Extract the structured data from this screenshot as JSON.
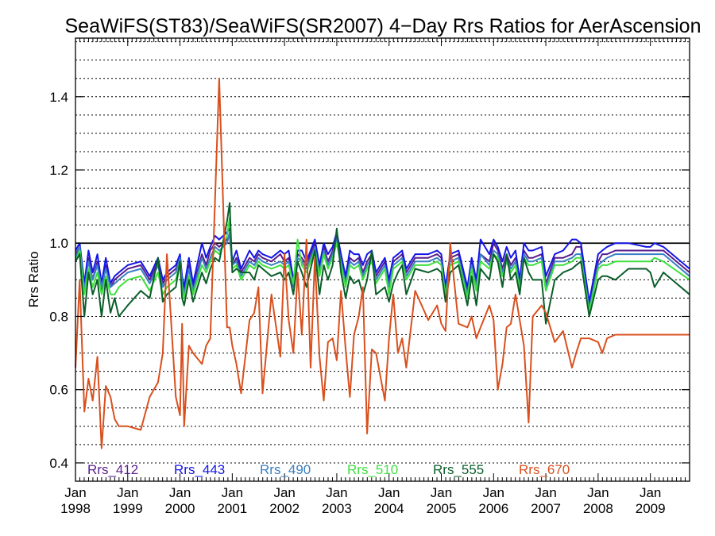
{
  "chart_data": {
    "type": "line",
    "title": "SeaWiFS(ST83)/SeaWiFS(SR2007) 4−Day Rrs Ratios for AerAscension",
    "ylabel": "Rrs Ratio",
    "xlabel": "",
    "xlim": [
      1998.0,
      2009.75
    ],
    "ylim": [
      0.35,
      1.56
    ],
    "y_ticks": [
      0.4,
      0.6,
      0.8,
      1.0,
      1.2,
      1.4
    ],
    "x_ticks": [
      {
        "value": 1998,
        "month": "Jan",
        "year": "1998"
      },
      {
        "value": 1999,
        "month": "Jan",
        "year": "1999"
      },
      {
        "value": 2000,
        "month": "Jan",
        "year": "2000"
      },
      {
        "value": 2001,
        "month": "Jan",
        "year": "2001"
      },
      {
        "value": 2002,
        "month": "Jan",
        "year": "2002"
      },
      {
        "value": 2003,
        "month": "Jan",
        "year": "2003"
      },
      {
        "value": 2004,
        "month": "Jan",
        "year": "2004"
      },
      {
        "value": 2005,
        "month": "Jan",
        "year": "2005"
      },
      {
        "value": 2006,
        "month": "Jan",
        "year": "2006"
      },
      {
        "value": 2007,
        "month": "Jan",
        "year": "2007"
      },
      {
        "value": 2008,
        "month": "Jan",
        "year": "2008"
      },
      {
        "value": 2009,
        "month": "Jan",
        "year": "2009"
      }
    ],
    "grid": true,
    "reference_line": 1.0,
    "legend_position": "bottom",
    "x": [
      1998.0,
      1998.08,
      1998.17,
      1998.25,
      1998.33,
      1998.42,
      1998.5,
      1998.58,
      1998.67,
      1998.75,
      1998.83,
      1999.0,
      1999.25,
      1999.42,
      1999.58,
      1999.67,
      1999.75,
      1999.92,
      2000.0,
      2000.04,
      2000.08,
      2000.17,
      2000.25,
      2000.42,
      2000.5,
      2000.58,
      2000.67,
      2000.75,
      2000.9,
      2000.95,
      2001.0,
      2001.08,
      2001.17,
      2001.33,
      2001.42,
      2001.5,
      2001.58,
      2001.75,
      2001.92,
      2002.0,
      2002.08,
      2002.17,
      2002.25,
      2002.33,
      2002.42,
      2002.5,
      2002.58,
      2002.67,
      2002.75,
      2002.83,
      2002.92,
      2003.0,
      2003.08,
      2003.17,
      2003.25,
      2003.33,
      2003.42,
      2003.5,
      2003.58,
      2003.67,
      2003.75,
      2003.92,
      2004.0,
      2004.08,
      2004.17,
      2004.25,
      2004.33,
      2004.5,
      2004.75,
      2004.92,
      2005.0,
      2005.08,
      2005.17,
      2005.33,
      2005.5,
      2005.58,
      2005.67,
      2005.75,
      2005.92,
      2006.0,
      2006.08,
      2006.17,
      2006.25,
      2006.33,
      2006.42,
      2006.5,
      2006.58,
      2006.67,
      2006.75,
      2006.92,
      2007.0,
      2007.17,
      2007.33,
      2007.5,
      2007.58,
      2007.67,
      2007.83,
      2008.0,
      2008.08,
      2008.17,
      2008.33,
      2008.58,
      2008.92,
      2009.0,
      2009.08,
      2009.25,
      2009.75
    ],
    "series": [
      {
        "name": "Rrs_412",
        "color": "#5a1e8c",
        "values": [
          0.97,
          0.99,
          0.88,
          0.96,
          0.9,
          0.95,
          0.87,
          0.94,
          0.88,
          0.9,
          0.91,
          0.93,
          0.94,
          0.9,
          0.95,
          0.89,
          0.91,
          0.93,
          0.96,
          0.9,
          0.87,
          0.94,
          0.88,
          0.97,
          0.94,
          0.98,
          1.0,
          0.99,
          1.01,
          1.02,
          0.94,
          0.96,
          0.92,
          0.96,
          0.95,
          0.97,
          0.96,
          0.95,
          0.97,
          0.95,
          0.96,
          0.88,
          0.97,
          0.96,
          0.94,
          0.97,
          1.0,
          0.93,
          0.99,
          0.95,
          0.98,
          1.02,
          0.96,
          0.9,
          0.96,
          0.95,
          0.96,
          0.92,
          0.95,
          0.97,
          0.91,
          0.95,
          0.89,
          0.95,
          0.96,
          0.97,
          0.92,
          0.96,
          0.96,
          0.97,
          0.96,
          0.87,
          0.96,
          0.97,
          0.87,
          0.95,
          0.89,
          0.97,
          0.95,
          1.0,
          0.98,
          0.93,
          0.97,
          0.94,
          0.96,
          0.89,
          0.98,
          0.96,
          0.96,
          0.97,
          0.89,
          0.96,
          0.96,
          0.97,
          0.99,
          0.99,
          0.83,
          0.95,
          0.97,
          0.97,
          0.98,
          0.98,
          0.98,
          0.98,
          0.98,
          0.98,
          0.92
        ]
      },
      {
        "name": "Rrs_443",
        "color": "#1515e6",
        "values": [
          0.98,
          1.0,
          0.89,
          0.98,
          0.92,
          0.97,
          0.89,
          0.96,
          0.89,
          0.91,
          0.92,
          0.94,
          0.95,
          0.91,
          0.96,
          0.9,
          0.92,
          0.94,
          0.97,
          0.91,
          0.88,
          0.96,
          0.89,
          1.0,
          0.96,
          0.99,
          1.02,
          1.01,
          1.03,
          1.04,
          0.95,
          0.98,
          0.93,
          0.98,
          0.96,
          0.98,
          0.97,
          0.96,
          0.98,
          0.97,
          0.98,
          0.9,
          0.98,
          0.98,
          0.95,
          0.98,
          1.01,
          0.94,
          1.0,
          0.97,
          0.99,
          1.03,
          0.97,
          0.91,
          0.98,
          0.97,
          0.97,
          0.94,
          0.97,
          0.98,
          0.92,
          0.96,
          0.9,
          0.96,
          0.97,
          0.98,
          0.93,
          0.97,
          0.97,
          0.98,
          0.97,
          0.88,
          0.97,
          0.98,
          0.88,
          0.96,
          0.9,
          1.01,
          0.97,
          1.01,
          0.99,
          0.95,
          0.99,
          0.96,
          0.98,
          0.9,
          1.0,
          0.98,
          0.98,
          0.99,
          0.91,
          0.97,
          0.98,
          1.01,
          1.01,
          1.0,
          0.84,
          0.97,
          0.98,
          0.99,
          1.0,
          1.0,
          0.99,
          0.99,
          1.0,
          0.99,
          0.93
        ]
      },
      {
        "name": "Rrs_490",
        "color": "#3a7fc4",
        "values": [
          0.96,
          0.99,
          0.87,
          0.95,
          0.9,
          0.94,
          0.88,
          0.93,
          0.88,
          0.89,
          0.9,
          0.92,
          0.93,
          0.89,
          0.94,
          0.88,
          0.9,
          0.92,
          0.96,
          0.89,
          0.86,
          0.93,
          0.87,
          0.96,
          0.93,
          0.96,
          0.99,
          0.98,
          1.0,
          1.03,
          0.94,
          0.95,
          0.91,
          0.95,
          0.94,
          0.96,
          0.95,
          0.94,
          0.95,
          0.94,
          0.95,
          0.88,
          0.96,
          0.95,
          0.93,
          0.96,
          0.99,
          0.92,
          0.98,
          0.94,
          0.97,
          1.01,
          0.95,
          0.89,
          0.95,
          0.94,
          0.95,
          0.91,
          0.94,
          0.96,
          0.9,
          0.94,
          0.88,
          0.94,
          0.95,
          0.96,
          0.91,
          0.95,
          0.95,
          0.96,
          0.95,
          0.86,
          0.95,
          0.96,
          0.86,
          0.94,
          0.88,
          0.97,
          0.94,
          0.98,
          0.97,
          0.92,
          0.96,
          0.93,
          0.95,
          0.88,
          0.97,
          0.95,
          0.95,
          0.96,
          0.88,
          0.95,
          0.95,
          0.96,
          0.97,
          0.97,
          0.82,
          0.94,
          0.95,
          0.96,
          0.97,
          0.97,
          0.97,
          0.97,
          0.97,
          0.97,
          0.91
        ]
      },
      {
        "name": "Rrs_510",
        "color": "#3ee03e",
        "values": [
          0.95,
          0.98,
          0.86,
          0.93,
          0.88,
          0.92,
          0.86,
          0.91,
          0.86,
          0.86,
          0.88,
          0.9,
          0.91,
          0.87,
          0.92,
          0.86,
          0.88,
          0.9,
          0.95,
          0.88,
          0.85,
          0.91,
          0.86,
          0.94,
          0.92,
          0.95,
          0.98,
          0.97,
          1.02,
          1.07,
          0.93,
          0.94,
          0.9,
          0.94,
          0.93,
          0.95,
          0.94,
          0.93,
          0.94,
          0.93,
          0.94,
          0.89,
          1.01,
          0.94,
          0.92,
          0.95,
          0.98,
          0.91,
          0.97,
          0.93,
          0.96,
          1.0,
          0.94,
          0.88,
          0.94,
          0.93,
          0.94,
          0.9,
          0.93,
          0.95,
          0.89,
          0.93,
          0.86,
          0.93,
          0.94,
          0.95,
          0.9,
          0.94,
          0.94,
          0.95,
          0.94,
          0.85,
          0.94,
          0.95,
          0.85,
          0.93,
          0.87,
          0.95,
          0.93,
          0.97,
          0.96,
          0.91,
          0.95,
          0.92,
          0.94,
          0.87,
          0.96,
          0.94,
          0.94,
          0.95,
          0.87,
          0.94,
          0.94,
          0.95,
          0.96,
          0.96,
          0.81,
          0.93,
          0.94,
          0.94,
          0.95,
          0.95,
          0.95,
          0.95,
          0.96,
          0.95,
          0.9
        ]
      },
      {
        "name": "Rrs_555",
        "color": "#0b5e2a",
        "values": [
          0.95,
          0.97,
          0.8,
          0.92,
          0.86,
          0.9,
          0.8,
          0.9,
          0.81,
          0.85,
          0.8,
          0.83,
          0.87,
          0.85,
          0.96,
          0.84,
          0.86,
          0.88,
          0.95,
          0.85,
          0.83,
          0.9,
          0.84,
          0.92,
          0.89,
          0.93,
          0.96,
          0.95,
          1.06,
          1.11,
          0.92,
          0.93,
          0.92,
          0.92,
          0.9,
          0.94,
          0.93,
          0.91,
          0.92,
          0.9,
          0.92,
          0.86,
          0.95,
          0.92,
          0.88,
          0.93,
          0.98,
          0.86,
          0.94,
          0.9,
          0.94,
          1.04,
          0.92,
          0.85,
          0.91,
          0.89,
          0.9,
          0.86,
          0.9,
          0.98,
          0.86,
          0.88,
          0.84,
          0.89,
          0.92,
          0.94,
          0.86,
          0.93,
          0.92,
          0.93,
          0.92,
          0.84,
          0.92,
          0.94,
          0.83,
          0.91,
          0.83,
          0.93,
          0.9,
          0.97,
          0.95,
          0.88,
          0.97,
          0.9,
          0.92,
          0.86,
          0.96,
          0.92,
          0.9,
          0.9,
          0.78,
          0.9,
          0.92,
          0.93,
          0.94,
          0.95,
          0.8,
          0.9,
          0.91,
          0.91,
          0.9,
          0.93,
          0.93,
          0.92,
          0.88,
          0.92,
          0.86
        ]
      },
      {
        "name": "Rrs_670",
        "color": "#d9501e",
        "values": [
          0.66,
          0.9,
          0.54,
          0.63,
          0.57,
          0.69,
          0.44,
          0.61,
          0.58,
          0.52,
          0.5,
          0.5,
          0.49,
          0.58,
          0.62,
          0.7,
          0.97,
          0.58,
          0.53,
          0.78,
          0.5,
          0.72,
          0.7,
          0.67,
          0.72,
          0.74,
          1.12,
          1.45,
          0.77,
          0.77,
          0.72,
          0.67,
          0.59,
          0.79,
          0.81,
          0.88,
          0.59,
          0.86,
          0.69,
          0.97,
          0.79,
          0.7,
          0.92,
          0.75,
          1.01,
          0.66,
          0.96,
          0.69,
          0.57,
          0.73,
          0.74,
          0.68,
          0.87,
          0.71,
          0.58,
          0.75,
          0.8,
          0.88,
          0.48,
          0.71,
          0.7,
          0.57,
          0.74,
          0.86,
          0.7,
          0.74,
          0.66,
          0.87,
          0.79,
          0.83,
          0.78,
          0.76,
          1.0,
          0.78,
          0.77,
          0.8,
          0.74,
          0.77,
          0.83,
          0.79,
          0.6,
          0.67,
          0.77,
          0.78,
          0.86,
          0.79,
          0.72,
          0.51,
          0.8,
          0.83,
          0.81,
          0.73,
          0.76,
          0.66,
          0.7,
          0.74,
          0.74,
          0.73,
          0.7,
          0.74,
          0.75,
          0.75,
          0.75,
          0.75,
          0.75,
          0.75,
          0.75
        ]
      }
    ]
  }
}
